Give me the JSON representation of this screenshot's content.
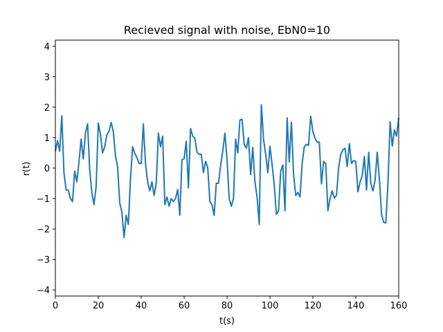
{
  "chart_data": {
    "type": "line",
    "title": "Recieved signal with noise, EbN0=10",
    "xlabel": "t(s)",
    "ylabel": "r(t)",
    "xlim": [
      0,
      160
    ],
    "ylim": [
      -4.2,
      4.2
    ],
    "xticks": [
      0,
      20,
      40,
      60,
      80,
      100,
      120,
      140,
      160
    ],
    "yticks": [
      -4,
      -3,
      -2,
      -1,
      0,
      1,
      2,
      3,
      4
    ],
    "grid": false,
    "series": [
      {
        "color": "#1f77b4",
        "x": [
          0,
          1,
          2,
          3,
          4,
          5,
          6,
          7,
          8,
          9,
          10,
          11,
          12,
          13,
          14,
          15,
          16,
          17,
          18,
          19,
          20,
          21,
          22,
          23,
          24,
          25,
          26,
          27,
          28,
          29,
          30,
          31,
          32,
          33,
          34,
          35,
          36,
          37,
          38,
          39,
          40,
          41,
          42,
          43,
          44,
          45,
          46,
          47,
          48,
          49,
          50,
          51,
          52,
          53,
          54,
          55,
          56,
          57,
          58,
          59,
          60,
          61,
          62,
          63,
          64,
          65,
          66,
          67,
          68,
          69,
          70,
          71,
          72,
          73,
          74,
          75,
          76,
          77,
          78,
          79,
          80,
          81,
          82,
          83,
          84,
          85,
          86,
          87,
          88,
          89,
          90,
          91,
          92,
          93,
          94,
          95,
          96,
          97,
          98,
          99,
          100,
          101,
          102,
          103,
          104,
          105,
          106,
          107,
          108,
          109,
          110,
          111,
          112,
          113,
          114,
          115,
          116,
          117,
          118,
          119,
          120,
          121,
          122,
          123,
          124,
          125,
          126,
          127,
          128,
          129,
          130,
          131,
          132,
          133,
          134,
          135,
          136,
          137,
          138,
          139,
          140,
          141,
          142,
          143,
          144,
          145,
          146,
          147,
          148,
          149,
          150,
          151,
          152,
          153,
          154,
          155,
          156,
          157,
          158,
          159,
          160
        ],
        "y": [
          0.55,
          0.9,
          0.55,
          1.72,
          -0.15,
          -0.72,
          -0.72,
          -1.0,
          -1.1,
          -0.1,
          -0.45,
          0.2,
          0.95,
          0.3,
          1.15,
          1.45,
          -0.05,
          -0.8,
          -1.2,
          -0.6,
          1.48,
          1.1,
          0.5,
          0.7,
          1.1,
          1.2,
          1.5,
          1.2,
          0.4,
          0.05,
          -1.15,
          -1.45,
          -2.28,
          -1.55,
          -1.85,
          -0.35,
          0.7,
          0.48,
          0.35,
          0.15,
          0.15,
          1.45,
          0.15,
          -0.45,
          -0.75,
          -0.45,
          -0.9,
          -0.5,
          1.15,
          0.7,
          1.05,
          -1.2,
          -0.95,
          -1.25,
          -1.0,
          -1.1,
          -1.0,
          -0.7,
          -1.55,
          0.28,
          0.3,
          0.88,
          -0.65,
          1.3,
          1.05,
          0.98,
          0.52,
          0.45,
          0.45,
          -0.15,
          0.22,
          0.02,
          -1.1,
          -1.2,
          -1.55,
          -0.5,
          -0.5,
          0.08,
          0.55,
          1.15,
          0.28,
          -1.0,
          -1.25,
          -1.0,
          0.95,
          0.5,
          1.58,
          1.6,
          0.78,
          0.65,
          1.0,
          -0.22,
          0.68,
          -0.45,
          -0.95,
          -1.85,
          2.08,
          0.95,
          0.45,
          -0.15,
          0.72,
          0.12,
          -0.55,
          -1.52,
          -1.4,
          -0.1,
          0.1,
          -1.4,
          1.65,
          0.2,
          1.5,
          -0.2,
          -0.9,
          -0.8,
          -0.95,
          0.15,
          0.7,
          0.78,
          0.75,
          1.7,
          1.2,
          0.98,
          0.85,
          0.85,
          -0.52,
          0.22,
          0.15,
          -1.4,
          -1.0,
          -0.75,
          -0.98,
          -0.9,
          0.0,
          0.45,
          0.6,
          0.65,
          0.05,
          0.8,
          0.15,
          0.25,
          0.22,
          -0.78,
          -0.45,
          -0.25,
          0.38,
          -0.72,
          0.52,
          -0.5,
          -0.75,
          -0.4,
          0.52,
          -0.35,
          -1.52,
          -1.78,
          -1.8,
          -0.5,
          1.52,
          0.72,
          1.25,
          1.05,
          1.65
        ]
      }
    ]
  }
}
